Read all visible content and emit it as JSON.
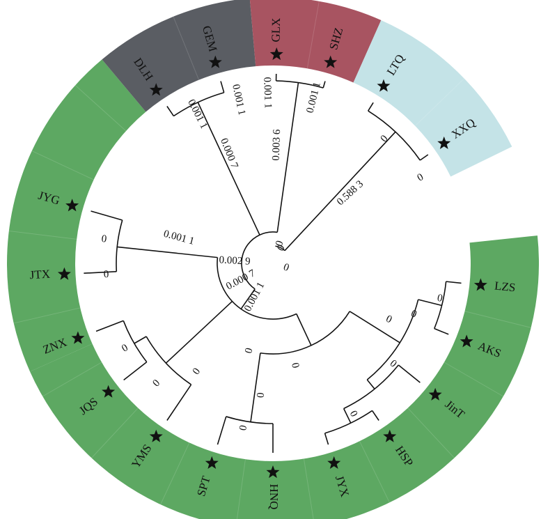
{
  "groups": [
    {
      "name": "green-group",
      "color": "#5da862"
    },
    {
      "name": "gray-group",
      "color": "#5a5d63"
    },
    {
      "name": "red-group",
      "color": "#a85461"
    },
    {
      "name": "lightblue-group",
      "color": "#c4e3e7"
    }
  ],
  "leaves": [
    {
      "id": "LZS",
      "label": "LZS"
    },
    {
      "id": "AKS",
      "label": "AKS"
    },
    {
      "id": "JinT",
      "label": "JinT"
    },
    {
      "id": "HSP",
      "label": "HSP"
    },
    {
      "id": "JYX",
      "label": "JYX"
    },
    {
      "id": "HNQ",
      "label": "HNQ"
    },
    {
      "id": "SPT",
      "label": "SPT"
    },
    {
      "id": "YMS",
      "label": "YMS"
    },
    {
      "id": "JQS",
      "label": "JQS"
    },
    {
      "id": "ZNX",
      "label": "ZNX"
    },
    {
      "id": "JTX",
      "label": "JTX"
    },
    {
      "id": "JYG",
      "label": "JYG"
    },
    {
      "id": "DLH",
      "label": "DLH"
    },
    {
      "id": "GEM",
      "label": "GEM"
    },
    {
      "id": "GLX",
      "label": "GLX"
    },
    {
      "id": "SHZ",
      "label": "SHZ"
    },
    {
      "id": "LTQ",
      "label": "LTQ"
    },
    {
      "id": "XXQ",
      "label": "XXQ"
    }
  ],
  "branch_labels": {
    "b_5883": "0.588 3",
    "b_0036": "0.003 6",
    "b_0007": "0.000 7",
    "b_0011_jtx": "0.001 1",
    "b_0029": "0.002 9",
    "b_0007b": "0.000 7",
    "b_0011_b": "0.001 1",
    "b_0011_c": "0.001 1",
    "b_0011_d": "0.001 1",
    "b_0011_e": "0.001 1",
    "b_0011_f": "0.001 1",
    "zero": "0"
  }
}
